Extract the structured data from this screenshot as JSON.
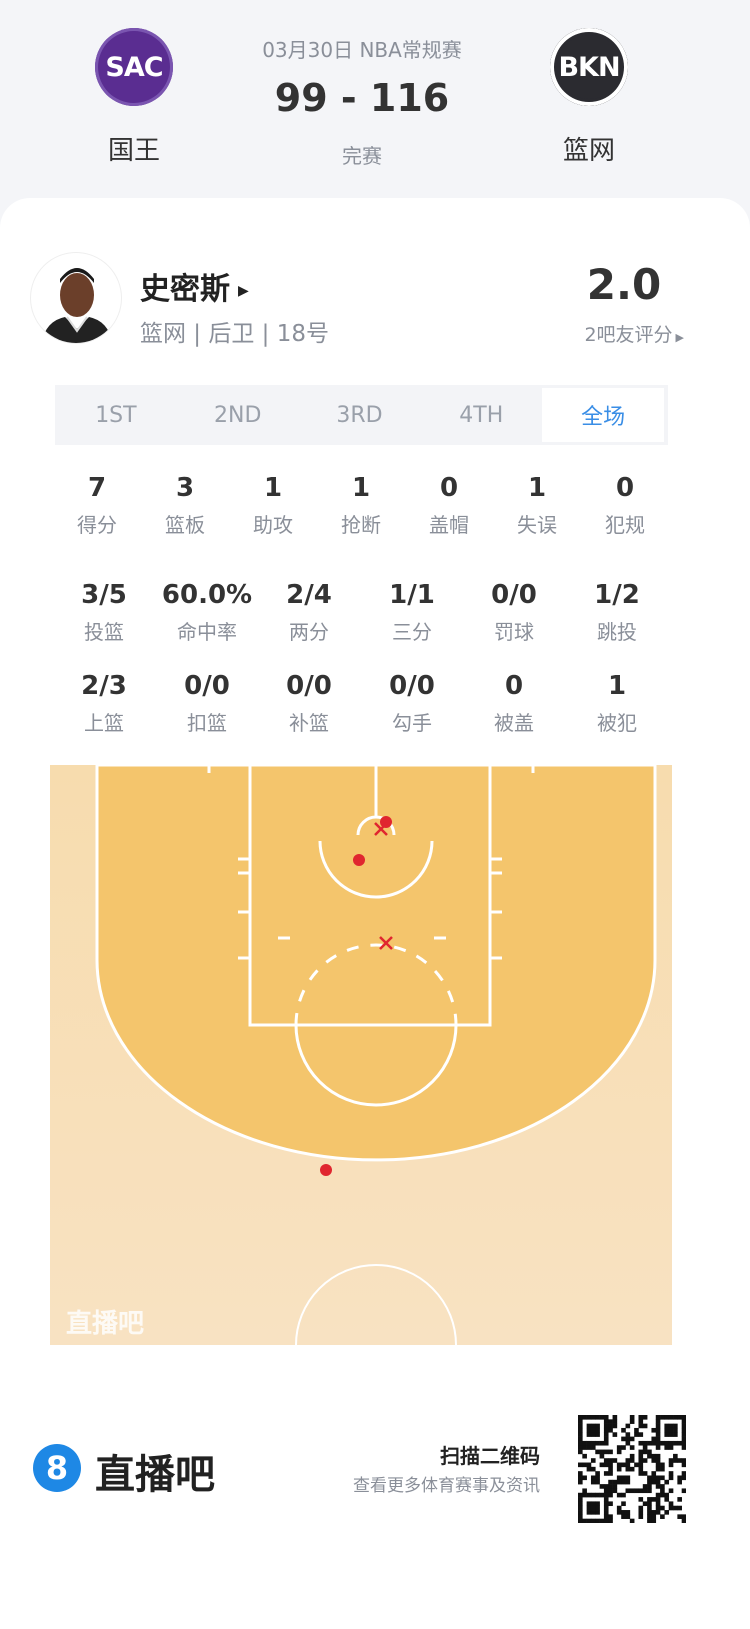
{
  "match": {
    "date_league": "03月30日 NBA常规赛",
    "score": "99 - 116",
    "status": "完赛",
    "home": {
      "abbr": "SAC",
      "name": "国王",
      "color": "#5a2d91"
    },
    "away": {
      "abbr": "BKN",
      "name": "篮网",
      "color": "#2b2b30"
    }
  },
  "player": {
    "name": "史密斯",
    "info": "篮网 | 后卫 | 18号",
    "rating": "2.0",
    "rating_label": "2吧友评分"
  },
  "tabs": [
    {
      "label": "1ST"
    },
    {
      "label": "2ND"
    },
    {
      "label": "3RD"
    },
    {
      "label": "4TH"
    },
    {
      "label": "全场",
      "active": true
    }
  ],
  "stats_row1": [
    {
      "v": "7",
      "l": "得分"
    },
    {
      "v": "3",
      "l": "篮板"
    },
    {
      "v": "1",
      "l": "助攻"
    },
    {
      "v": "1",
      "l": "抢断"
    },
    {
      "v": "0",
      "l": "盖帽"
    },
    {
      "v": "1",
      "l": "失误"
    },
    {
      "v": "0",
      "l": "犯规"
    }
  ],
  "stats_row2": [
    {
      "v": "3/5",
      "l": "投篮"
    },
    {
      "v": "60.0%",
      "l": "命中率"
    },
    {
      "v": "2/4",
      "l": "两分"
    },
    {
      "v": "1/1",
      "l": "三分"
    },
    {
      "v": "0/0",
      "l": "罚球"
    },
    {
      "v": "1/2",
      "l": "跳投"
    }
  ],
  "stats_row3": [
    {
      "v": "2/3",
      "l": "上篮"
    },
    {
      "v": "0/0",
      "l": "扣篮"
    },
    {
      "v": "0/0",
      "l": "补篮"
    },
    {
      "v": "0/0",
      "l": "勾手"
    },
    {
      "v": "0",
      "l": "被盖"
    },
    {
      "v": "1",
      "l": "被犯"
    }
  ],
  "court": {
    "watermark": "直播吧",
    "shot_color": "#e0262f",
    "shots": [
      {
        "result": "made"
      },
      {
        "result": "miss"
      },
      {
        "result": "made"
      },
      {
        "result": "miss"
      },
      {
        "result": "made"
      }
    ]
  },
  "footer": {
    "brand": "直播吧",
    "brand_icon": "8",
    "brand_color": "#1e88e5",
    "scan_title": "扫描二维码",
    "scan_sub": "查看更多体育赛事及资讯"
  }
}
